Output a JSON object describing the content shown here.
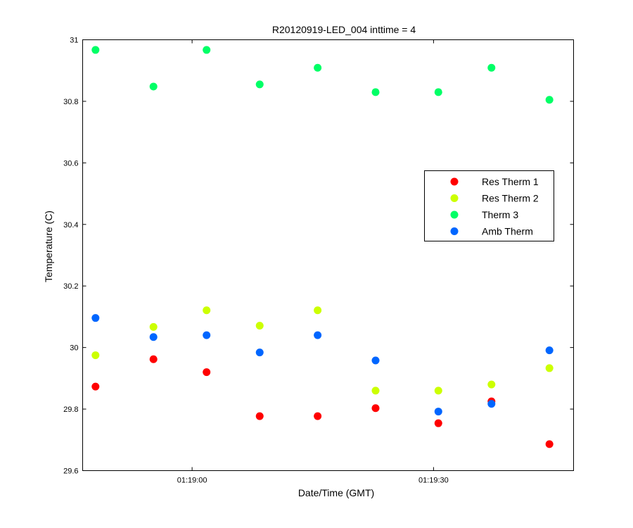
{
  "chart_data": {
    "type": "scatter",
    "title": "R20120919-LED_004 inttime = 4",
    "xlabel": "Date/Time (GMT)",
    "ylabel": "Temperature (C)",
    "x_unit": "time (hh:mm:ss, GMT)",
    "xlim": [
      "01:18:46.4",
      "01:19:47.4"
    ],
    "ylim": [
      29.6,
      31
    ],
    "x_ticks": [
      {
        "value": "01:19:00",
        "label": "01:19:00"
      },
      {
        "value": "01:19:30",
        "label": "01:19:30"
      }
    ],
    "y_ticks": [
      {
        "value": 29.6,
        "label": "29.6"
      },
      {
        "value": 29.8,
        "label": "29.8"
      },
      {
        "value": 30,
        "label": "30"
      },
      {
        "value": 30.2,
        "label": "30.2"
      },
      {
        "value": 30.4,
        "label": "30.4"
      },
      {
        "value": 30.6,
        "label": "30.6"
      },
      {
        "value": 30.8,
        "label": "30.8"
      },
      {
        "value": 31,
        "label": "31"
      }
    ],
    "grid": false,
    "legend_position": "right, upper-middle",
    "x": [
      "01:18:48",
      "01:18:55.2",
      "01:19:01.8",
      "01:19:08.4",
      "01:19:15.6",
      "01:19:22.8",
      "01:19:30.6",
      "01:19:37.2",
      "01:19:44.4"
    ],
    "series": [
      {
        "name": "Res Therm 1",
        "color": "#ff0000",
        "values": [
          29.873,
          29.962,
          29.92,
          29.777,
          29.777,
          29.803,
          29.754,
          29.825,
          29.686
        ]
      },
      {
        "name": "Res Therm 2",
        "color": "#ccff00",
        "values": [
          29.975,
          30.067,
          30.121,
          30.071,
          30.121,
          29.86,
          29.86,
          29.88,
          29.933
        ]
      },
      {
        "name": "Therm 3",
        "color": "#00ff66",
        "values": [
          30.967,
          30.848,
          30.967,
          30.855,
          30.909,
          30.83,
          30.83,
          30.909,
          30.805
        ]
      },
      {
        "name": "Amb Therm",
        "color": "#0066ff",
        "values": [
          30.096,
          30.034,
          30.04,
          29.984,
          30.04,
          29.958,
          29.792,
          29.817,
          29.991
        ]
      }
    ]
  }
}
